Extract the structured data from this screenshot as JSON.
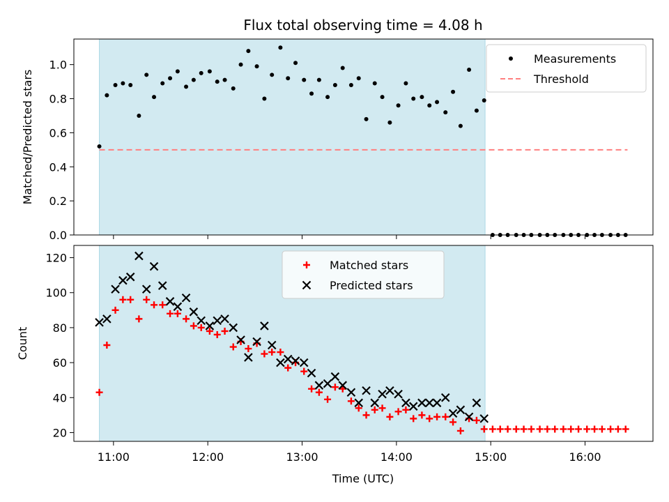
{
  "chart_data": {
    "type": "scatter",
    "title": "Flux total observing time = 4.08 h",
    "xlabel": "Time (UTC)",
    "x_ticks": [
      "11:00",
      "12:00",
      "13:00",
      "14:00",
      "15:00",
      "16:00"
    ],
    "x_range_hours": [
      10.58,
      16.72
    ],
    "shaded_span_hours": [
      10.85,
      14.94
    ],
    "shade_color": "#add8e6",
    "panels": [
      {
        "ylabel": "Matched/Predicted stars",
        "ylim": [
          0,
          1.15
        ],
        "yticks": [
          "0.0",
          "0.2",
          "0.4",
          "0.6",
          "0.8",
          "1.0"
        ],
        "legend_position": "top-right",
        "series": [
          {
            "name": "Measurements",
            "marker": "dot",
            "color": "#000000",
            "x": [
              10.85,
              10.93,
              11.02,
              11.1,
              11.18,
              11.27,
              11.35,
              11.43,
              11.52,
              11.6,
              11.68,
              11.77,
              11.85,
              11.93,
              12.02,
              12.1,
              12.18,
              12.27,
              12.35,
              12.43,
              12.52,
              12.6,
              12.68,
              12.77,
              12.85,
              12.93,
              13.02,
              13.1,
              13.18,
              13.27,
              13.35,
              13.43,
              13.52,
              13.6,
              13.68,
              13.77,
              13.85,
              13.93,
              14.02,
              14.1,
              14.18,
              14.27,
              14.35,
              14.43,
              14.52,
              14.6,
              14.68,
              14.77,
              14.85,
              14.93,
              15.02,
              15.1,
              15.18,
              15.27,
              15.35,
              15.43,
              15.52,
              15.6,
              15.68,
              15.77,
              15.85,
              15.93,
              16.02,
              16.1,
              16.18,
              16.27,
              16.35,
              16.43
            ],
            "y": [
              0.52,
              0.82,
              0.88,
              0.89,
              0.88,
              0.7,
              0.94,
              0.81,
              0.89,
              0.92,
              0.96,
              0.87,
              0.91,
              0.95,
              0.96,
              0.9,
              0.91,
              0.86,
              1.0,
              1.08,
              0.99,
              0.8,
              0.94,
              1.1,
              0.92,
              1.01,
              0.91,
              0.83,
              0.91,
              0.81,
              0.88,
              0.98,
              0.88,
              0.92,
              0.68,
              0.89,
              0.81,
              0.66,
              0.76,
              0.89,
              0.8,
              0.81,
              0.76,
              0.78,
              0.72,
              0.84,
              0.64,
              0.97,
              0.73,
              0.79,
              0,
              0,
              0,
              0,
              0,
              0,
              0,
              0,
              0,
              0,
              0,
              0,
              0,
              0,
              0,
              0,
              0,
              0
            ]
          },
          {
            "name": "Threshold",
            "marker": "dashed-line",
            "color": "#ff7f7f",
            "x": [
              10.85,
              16.45
            ],
            "y": [
              0.5,
              0.5
            ]
          }
        ]
      },
      {
        "ylabel": "Count",
        "ylim": [
          15,
          127
        ],
        "yticks": [
          "20",
          "40",
          "60",
          "80",
          "100",
          "120"
        ],
        "legend_position": "top-center",
        "series": [
          {
            "name": "Matched stars",
            "marker": "plus",
            "color": "#ff0000",
            "x": [
              10.85,
              10.93,
              11.02,
              11.1,
              11.18,
              11.27,
              11.35,
              11.43,
              11.52,
              11.6,
              11.68,
              11.77,
              11.85,
              11.93,
              12.02,
              12.1,
              12.18,
              12.27,
              12.35,
              12.43,
              12.52,
              12.6,
              12.68,
              12.77,
              12.85,
              12.93,
              13.02,
              13.1,
              13.18,
              13.27,
              13.35,
              13.43,
              13.52,
              13.6,
              13.68,
              13.77,
              13.85,
              13.93,
              14.02,
              14.1,
              14.18,
              14.27,
              14.35,
              14.43,
              14.52,
              14.6,
              14.68,
              14.77,
              14.85,
              14.93,
              15.02,
              15.1,
              15.18,
              15.27,
              15.35,
              15.43,
              15.52,
              15.6,
              15.68,
              15.77,
              15.85,
              15.93,
              16.02,
              16.1,
              16.18,
              16.27,
              16.35,
              16.43
            ],
            "y": [
              43,
              70,
              90,
              96,
              96,
              85,
              96,
              93,
              93,
              88,
              88,
              85,
              81,
              80,
              78,
              76,
              78,
              69,
              72,
              68,
              71,
              65,
              66,
              66,
              57,
              60,
              55,
              45,
              43,
              39,
              46,
              45,
              38,
              34,
              30,
              33,
              34,
              29,
              32,
              33,
              28,
              30,
              28,
              29,
              29,
              26,
              21,
              28,
              27,
              22,
              22,
              22,
              22,
              22,
              22,
              22,
              22,
              22,
              22,
              22,
              22,
              22,
              22,
              22,
              22,
              22,
              22,
              22
            ]
          },
          {
            "name": "Predicted stars",
            "marker": "x",
            "color": "#000000",
            "x": [
              10.85,
              10.93,
              11.02,
              11.1,
              11.18,
              11.27,
              11.35,
              11.43,
              11.52,
              11.6,
              11.68,
              11.77,
              11.85,
              11.93,
              12.02,
              12.1,
              12.18,
              12.27,
              12.35,
              12.43,
              12.52,
              12.6,
              12.68,
              12.77,
              12.85,
              12.93,
              13.02,
              13.1,
              13.18,
              13.27,
              13.35,
              13.43,
              13.52,
              13.6,
              13.68,
              13.77,
              13.85,
              13.93,
              14.02,
              14.1,
              14.18,
              14.27,
              14.35,
              14.43,
              14.52,
              14.6,
              14.68,
              14.77,
              14.85,
              14.93
            ],
            "y": [
              83,
              85,
              102,
              107,
              109,
              121,
              102,
              115,
              104,
              95,
              92,
              97,
              89,
              84,
              81,
              84,
              85,
              80,
              73,
              63,
              72,
              81,
              70,
              60,
              62,
              61,
              60,
              54,
              47,
              48,
              52,
              47,
              43,
              37,
              44,
              37,
              42,
              44,
              42,
              37,
              35,
              37,
              37,
              37,
              40,
              31,
              33,
              29,
              37,
              28
            ]
          }
        ]
      }
    ]
  }
}
